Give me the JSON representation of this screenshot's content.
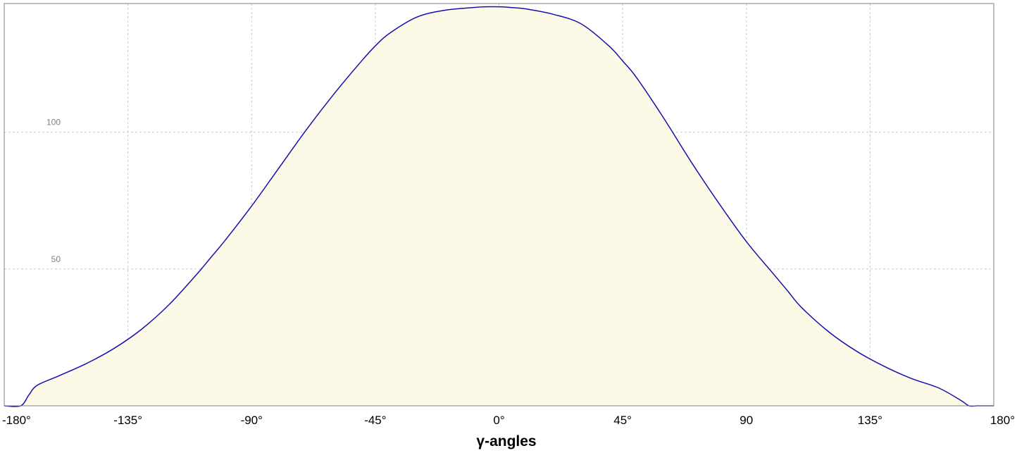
{
  "chart_data": {
    "type": "area",
    "xlabel": "γ-angles",
    "ylabel": "",
    "xlim": [
      -180,
      180
    ],
    "ylim": [
      0,
      147
    ],
    "grid": true,
    "x_ticks": [
      {
        "value": -180,
        "label": "-180°"
      },
      {
        "value": -135,
        "label": "-135°"
      },
      {
        "value": -90,
        "label": "-90°"
      },
      {
        "value": -45,
        "label": "-45°"
      },
      {
        "value": 0,
        "label": "0°"
      },
      {
        "value": 45,
        "label": "45°"
      },
      {
        "value": 90,
        "label": "90"
      },
      {
        "value": 135,
        "label": "135°"
      },
      {
        "value": 180,
        "label": "180°"
      }
    ],
    "y_ticks": [
      {
        "value": 50,
        "label": "50"
      },
      {
        "value": 100,
        "label": "100"
      }
    ],
    "colors": {
      "line": "#1a0dab",
      "fill": "#fcfae6",
      "grid": "#c8c8c8",
      "frame": "#808080"
    },
    "series": [
      {
        "x": [
          -180,
          -174,
          -171,
          -168,
          -160,
          -150,
          -140,
          -130,
          -120,
          -110,
          -105,
          -100,
          -90,
          -80,
          -70,
          -60,
          -50,
          -45,
          -40,
          -30,
          -20,
          -10,
          -5,
          0,
          5,
          10,
          20,
          30,
          40,
          45,
          50,
          60,
          70,
          80,
          90,
          100,
          105,
          110,
          120,
          130,
          140,
          150,
          160,
          168,
          171,
          174,
          180
        ],
        "y": [
          0,
          0,
          4,
          7.5,
          11,
          15.5,
          21,
          28,
          37,
          48,
          54,
          60,
          73,
          87,
          101,
          114,
          126,
          131.5,
          136,
          142,
          144.5,
          145.5,
          145.8,
          145.8,
          145.5,
          145,
          143,
          139.5,
          131.5,
          126,
          120,
          105,
          89,
          74,
          60,
          48,
          42,
          36,
          27,
          20,
          14.5,
          10,
          6.5,
          2,
          0,
          0,
          0
        ]
      }
    ]
  }
}
